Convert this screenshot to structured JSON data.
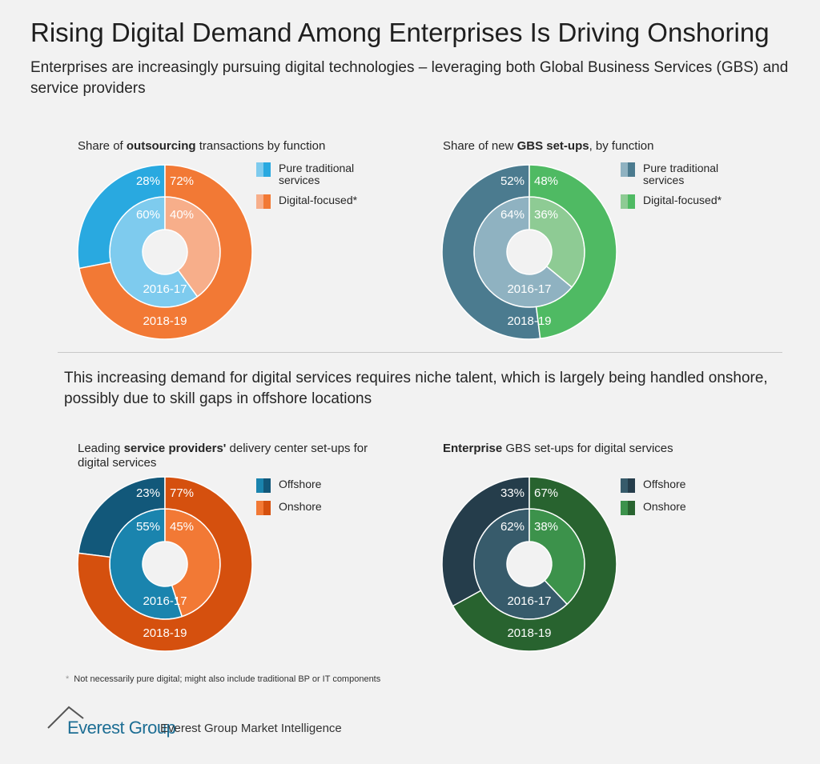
{
  "title": "Rising Digital Demand Among Enterprises Is Driving Onshoring",
  "subtitle": "Enterprises are increasingly pursuing digital technologies – leveraging both Global Business Services (GBS) and service providers",
  "mid_text": "This increasing demand for digital services requires niche talent, which is largely being handled onshore, possibly due to skill gaps in offshore locations",
  "footnote": "Not necessarily pure digital; might also include traditional BP or IT components",
  "footnote_marker": "*",
  "logo_text": "Everest Group",
  "brand": "Everest Group Market Intelligence",
  "chart_data": [
    {
      "type": "pie",
      "title_parts": [
        "Share of ",
        "outsourcing",
        " transactions by function"
      ],
      "legend": [
        "Pure traditional services",
        "Digital-focused*"
      ],
      "rings": [
        {
          "label": "2016-17",
          "values": [
            60,
            40
          ],
          "colors": [
            "#7ecbee",
            "#f7ae8a"
          ]
        },
        {
          "label": "2018-19",
          "values": [
            28,
            72
          ],
          "colors": [
            "#29a9e0",
            "#f27935"
          ]
        }
      ],
      "legend_colors": [
        [
          "#7ecbee",
          "#29a9e0"
        ],
        [
          "#f7ae8a",
          "#f27935"
        ]
      ]
    },
    {
      "type": "pie",
      "title_parts": [
        "Share of new ",
        "GBS set-ups",
        ", by function"
      ],
      "legend": [
        "Pure traditional services",
        "Digital-focused*"
      ],
      "rings": [
        {
          "label": "2016-17",
          "values": [
            64,
            36
          ],
          "colors": [
            "#8fb2c1",
            "#8ecb94"
          ]
        },
        {
          "label": "2018-19",
          "values": [
            52,
            48
          ],
          "colors": [
            "#4b7b8f",
            "#4fba63"
          ]
        }
      ],
      "legend_colors": [
        [
          "#8fb2c1",
          "#4b7b8f"
        ],
        [
          "#8ecb94",
          "#4fba63"
        ]
      ]
    },
    {
      "type": "pie",
      "title_parts": [
        "Leading ",
        "service providers'",
        " delivery center set-ups for digital services"
      ],
      "legend": [
        "Offshore",
        "Onshore"
      ],
      "rings": [
        {
          "label": "2016-17",
          "values": [
            55,
            45
          ],
          "colors": [
            "#1a84ae",
            "#f27935"
          ]
        },
        {
          "label": "2018-19",
          "values": [
            23,
            77
          ],
          "colors": [
            "#12587a",
            "#d5500e"
          ]
        }
      ],
      "legend_colors": [
        [
          "#1a84ae",
          "#12587a"
        ],
        [
          "#f27935",
          "#d5500e"
        ]
      ]
    },
    {
      "type": "pie",
      "title_parts": [
        "",
        "Enterprise",
        " GBS set-ups for digital services"
      ],
      "legend": [
        "Offshore",
        "Onshore"
      ],
      "rings": [
        {
          "label": "2016-17",
          "values": [
            62,
            38
          ],
          "colors": [
            "#375b6b",
            "#3c924b"
          ]
        },
        {
          "label": "2018-19",
          "values": [
            33,
            67
          ],
          "colors": [
            "#253d4b",
            "#28632f"
          ]
        }
      ],
      "legend_colors": [
        [
          "#375b6b",
          "#253d4b"
        ],
        [
          "#3c924b",
          "#28632f"
        ]
      ]
    }
  ]
}
